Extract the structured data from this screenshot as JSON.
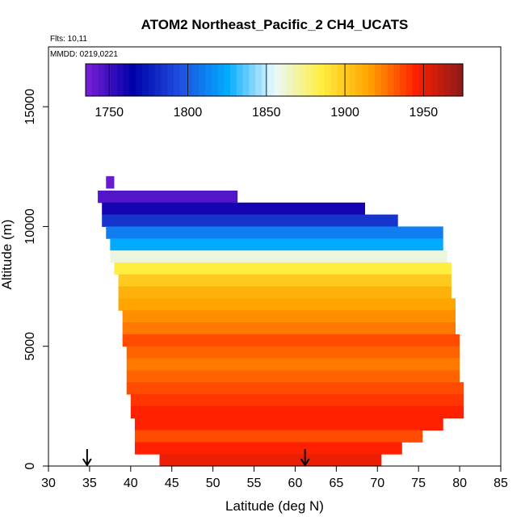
{
  "chart_data": {
    "type": "heatmap",
    "title": "ATOM2 Northeast_Pacific_2 CH4_UCATS",
    "flights_label": "Flts: 10,11",
    "date_label": "MMDD: 0219,0221",
    "xlabel": "Latitude (deg N)",
    "ylabel": "Altitude (m)",
    "xlim": [
      30,
      85
    ],
    "ylim": [
      0,
      17500
    ],
    "x_ticks": [
      30,
      35,
      40,
      45,
      50,
      55,
      60,
      65,
      70,
      75,
      80,
      85
    ],
    "y_ticks": [
      0,
      5000,
      10000,
      15000
    ],
    "colorbar": {
      "min": 1735,
      "max": 1975,
      "ticks": [
        1750,
        1800,
        1850,
        1900,
        1950
      ],
      "colors": [
        "#7b1fd8",
        "#0000a8",
        "#1f4fe0",
        "#00aaff",
        "#e8f8ff",
        "#ffee40",
        "#ffa500",
        "#ff2000",
        "#8b1a1a"
      ]
    },
    "arrow_markers_lat": [
      34.7,
      61.2
    ],
    "layers": [
      {
        "alt": 11850,
        "lat_min": 37.0,
        "lat_max": 38.0,
        "ch4": 1740
      },
      {
        "alt": 11250,
        "lat_min": 36.0,
        "lat_max": 53.0,
        "ch4": 1745
      },
      {
        "alt": 10750,
        "lat_min": 36.5,
        "lat_max": 68.5,
        "ch4": 1760
      },
      {
        "alt": 10250,
        "lat_min": 36.5,
        "lat_max": 72.5,
        "ch4": 1785
      },
      {
        "alt": 9750,
        "lat_min": 37.0,
        "lat_max": 78.0,
        "ch4": 1810
      },
      {
        "alt": 9250,
        "lat_min": 37.5,
        "lat_max": 78.0,
        "ch4": 1825
      },
      {
        "alt": 8750,
        "lat_min": 37.5,
        "lat_max": 78.5,
        "ch4": 1860
      },
      {
        "alt": 8250,
        "lat_min": 38.0,
        "lat_max": 79.0,
        "ch4": 1885
      },
      {
        "alt": 7750,
        "lat_min": 38.5,
        "lat_max": 79.0,
        "ch4": 1900
      },
      {
        "alt": 7250,
        "lat_min": 38.5,
        "lat_max": 79.0,
        "ch4": 1910
      },
      {
        "alt": 6750,
        "lat_min": 38.5,
        "lat_max": 79.5,
        "ch4": 1915
      },
      {
        "alt": 6250,
        "lat_min": 39.0,
        "lat_max": 79.5,
        "ch4": 1920
      },
      {
        "alt": 5750,
        "lat_min": 39.0,
        "lat_max": 79.5,
        "ch4": 1925
      },
      {
        "alt": 5250,
        "lat_min": 39.0,
        "lat_max": 80.0,
        "ch4": 1935
      },
      {
        "alt": 4750,
        "lat_min": 39.5,
        "lat_max": 80.0,
        "ch4": 1930
      },
      {
        "alt": 4250,
        "lat_min": 39.5,
        "lat_max": 80.0,
        "ch4": 1925
      },
      {
        "alt": 3750,
        "lat_min": 39.5,
        "lat_max": 80.0,
        "ch4": 1930
      },
      {
        "alt": 3250,
        "lat_min": 39.5,
        "lat_max": 80.5,
        "ch4": 1935
      },
      {
        "alt": 2750,
        "lat_min": 40.0,
        "lat_max": 80.5,
        "ch4": 1940
      },
      {
        "alt": 2250,
        "lat_min": 40.0,
        "lat_max": 80.5,
        "ch4": 1945
      },
      {
        "alt": 1750,
        "lat_min": 40.5,
        "lat_max": 78.0,
        "ch4": 1945
      },
      {
        "alt": 1250,
        "lat_min": 40.5,
        "lat_max": 75.5,
        "ch4": 1935
      },
      {
        "alt": 750,
        "lat_min": 40.5,
        "lat_max": 73.0,
        "ch4": 1945
      },
      {
        "alt": 250,
        "lat_min": 43.5,
        "lat_max": 70.5,
        "ch4": 1950
      }
    ]
  }
}
